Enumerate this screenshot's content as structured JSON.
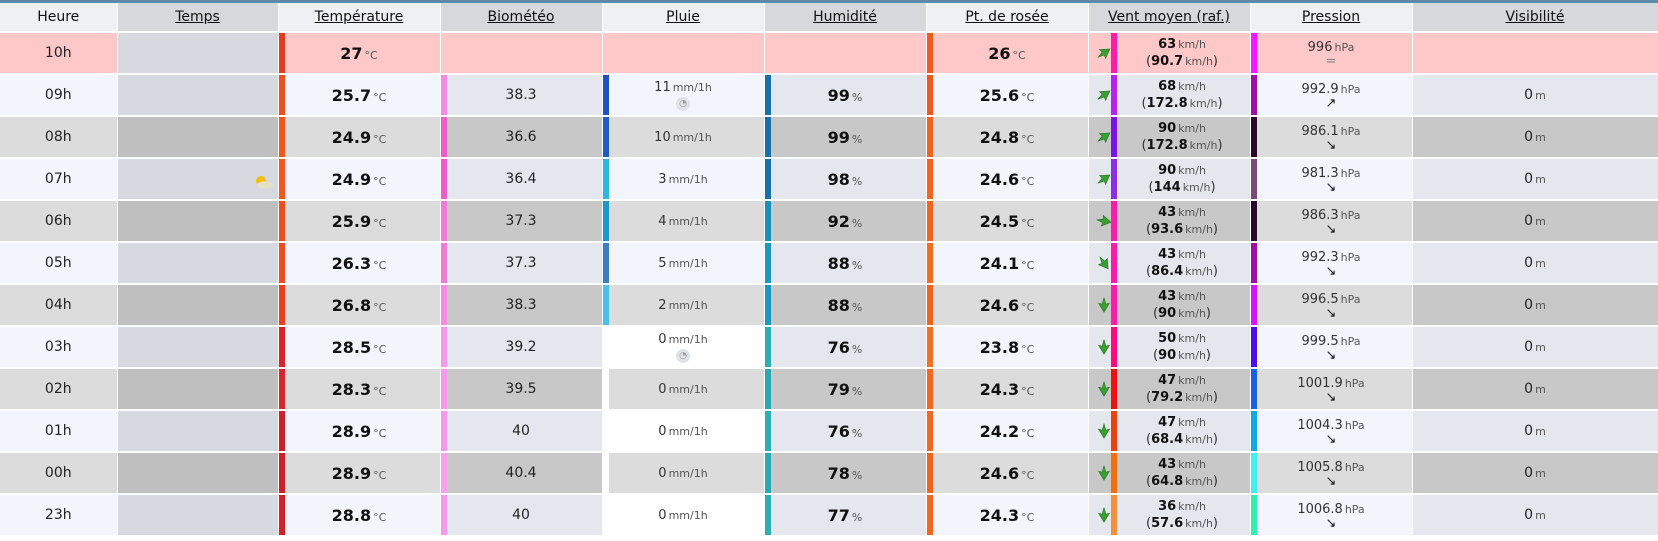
{
  "headers": [
    "Heure",
    "Temps",
    "Température",
    "Biométéo",
    "Pluie",
    "Humidité",
    "Pt. de rosée",
    "Vent moyen (raf.)",
    "Pression",
    "Visibilité"
  ],
  "units": {
    "temp": "°C",
    "rain": "mm/1h",
    "hum": "%",
    "wind": "km/h",
    "press": "hPa",
    "vis": "m"
  },
  "rows": [
    {
      "hour": "10h",
      "temp": "27",
      "tempColor": "#e53a1f",
      "bio": "",
      "bioColor": "",
      "rain": "",
      "rainColor": "",
      "hum": "",
      "humColor": "",
      "dew": "26",
      "dewColor": "#ef5a1e",
      "windDir": "sw",
      "wind": "63",
      "gust": "90.7",
      "windColor": "#ff1aa8",
      "press": "996",
      "trend": "=",
      "pressColor": "#ff16ff",
      "vis": "",
      "now": true
    },
    {
      "hour": "09h",
      "temp": "25.7",
      "tempColor": "#f04e1e",
      "bio": "38.3",
      "bioColor": "#f78ae5",
      "rain": "11",
      "rainIcon": true,
      "rainColor": "#1f4fc0",
      "hum": "99",
      "humColor": "#1870a8",
      "dew": "25.6",
      "dewColor": "#f05a1e",
      "windDir": "sw",
      "wind": "68",
      "gust": "172.8",
      "windColor": "#b325ee",
      "press": "992.9",
      "trend": "↗",
      "pressColor": "#a00fa8",
      "vis": "0"
    },
    {
      "hour": "08h",
      "temp": "24.9",
      "tempColor": "#f4561e",
      "bio": "36.6",
      "bioColor": "#f05ccc",
      "rain": "10",
      "rainColor": "#1e5ac8",
      "hum": "99",
      "humColor": "#1870a8",
      "dew": "24.8",
      "dewColor": "#f26420",
      "windDir": "sw",
      "wind": "90",
      "gust": "172.8",
      "windColor": "#7a14e8",
      "press": "986.1",
      "trend": "↘",
      "pressColor": "#2a0a2a",
      "vis": "0"
    },
    {
      "hour": "07h",
      "temp": "24.9",
      "tempColor": "#f4561e",
      "bio": "36.4",
      "bioColor": "#f05ccc",
      "rain": "3",
      "rainColor": "#2ab8e0",
      "hum": "98",
      "humColor": "#1870a8",
      "dew": "24.6",
      "dewColor": "#f26420",
      "windDir": "sw",
      "wind": "90",
      "gust": "144",
      "windColor": "#8a2fe8",
      "press": "981.3",
      "trend": "↘",
      "pressColor": "#7a4a7a",
      "vis": "0",
      "weatherIcon": true
    },
    {
      "hour": "06h",
      "temp": "25.9",
      "tempColor": "#f04e1e",
      "bio": "37.3",
      "bioColor": "#f27ad8",
      "rain": "4",
      "rainColor": "#1a98d0",
      "hum": "92",
      "humColor": "#1890b8",
      "dew": "24.5",
      "dewColor": "#f26420",
      "windDir": "w",
      "wind": "43",
      "gust": "93.6",
      "windColor": "#ff1aa8",
      "press": "986.3",
      "trend": "↘",
      "pressColor": "#2a0a2a",
      "vis": "0"
    },
    {
      "hour": "05h",
      "temp": "26.3",
      "tempColor": "#f04a1e",
      "bio": "37.3",
      "bioColor": "#f27ad8",
      "rain": "5",
      "rainColor": "#3a7cc8",
      "hum": "88",
      "humColor": "#1c98c0",
      "dew": "24.1",
      "dewColor": "#f26c22",
      "windDir": "nw",
      "wind": "43",
      "gust": "86.4",
      "windColor": "#ff1aa8",
      "press": "992.3",
      "trend": "↘",
      "pressColor": "#a00fa8",
      "vis": "0"
    },
    {
      "hour": "04h",
      "temp": "26.8",
      "tempColor": "#e8401e",
      "bio": "38.3",
      "bioColor": "#f78ae5",
      "rain": "2",
      "rainColor": "#4ac0f0",
      "hum": "88",
      "humColor": "#1c98c0",
      "dew": "24.6",
      "dewColor": "#f26420",
      "windDir": "n",
      "wind": "43",
      "gust": "90",
      "windColor": "#ff1aa8",
      "press": "996.5",
      "trend": "↘",
      "pressColor": "#d416ff",
      "vis": "0"
    },
    {
      "hour": "03h",
      "temp": "28.5",
      "tempColor": "#d6242a",
      "bio": "39.2",
      "bioColor": "#f898ea",
      "rain": "0",
      "rainIcon": true,
      "rainColor": "",
      "hum": "76",
      "humColor": "#2eaeb0",
      "dew": "23.8",
      "dewColor": "#f27022",
      "windDir": "n",
      "wind": "50",
      "gust": "90",
      "windColor": "#ff0a7a",
      "press": "999.5",
      "trend": "↘",
      "pressColor": "#4a10f0",
      "vis": "0"
    },
    {
      "hour": "02h",
      "temp": "28.3",
      "tempColor": "#d8262a",
      "bio": "39.5",
      "bioColor": "#f898ea",
      "rain": "0",
      "rainColor": "#ffffff",
      "hum": "79",
      "humColor": "#28a8b0",
      "dew": "24.3",
      "dewColor": "#f26822",
      "windDir": "n",
      "wind": "47",
      "gust": "79.2",
      "windColor": "#f01010",
      "press": "1001.9",
      "trend": "↘",
      "pressColor": "#1860e8",
      "vis": "0"
    },
    {
      "hour": "01h",
      "temp": "28.9",
      "tempColor": "#d01e2a",
      "bio": "40",
      "bioColor": "#f898ea",
      "rain": "0",
      "rainColor": "",
      "hum": "76",
      "humColor": "#2eaeb0",
      "dew": "24.2",
      "dewColor": "#f26822",
      "windDir": "n",
      "wind": "47",
      "gust": "68.4",
      "windColor": "#f04010",
      "press": "1004.3",
      "trend": "↘",
      "pressColor": "#10a8e8",
      "vis": "0"
    },
    {
      "hour": "00h",
      "temp": "28.9",
      "tempColor": "#d01e2a",
      "bio": "40.4",
      "bioColor": "#f8a0ec",
      "rain": "0",
      "rainColor": "#ffffff",
      "hum": "78",
      "humColor": "#2aaab0",
      "dew": "24.6",
      "dewColor": "#f26420",
      "windDir": "n",
      "wind": "43",
      "gust": "64.8",
      "windColor": "#f07010",
      "press": "1005.8",
      "trend": "↘",
      "pressColor": "#40f0f0",
      "vis": "0"
    },
    {
      "hour": "23h",
      "temp": "28.8",
      "tempColor": "#d2202a",
      "bio": "40",
      "bioColor": "#f898ea",
      "rain": "0",
      "rainColor": "",
      "hum": "77",
      "humColor": "#2eaeb0",
      "dew": "24.3",
      "dewColor": "#f26822",
      "windDir": "n",
      "wind": "36",
      "gust": "57.6",
      "windColor": "#f09040",
      "press": "1006.8",
      "trend": "↘",
      "pressColor": "#30f0b0",
      "vis": "0"
    }
  ]
}
